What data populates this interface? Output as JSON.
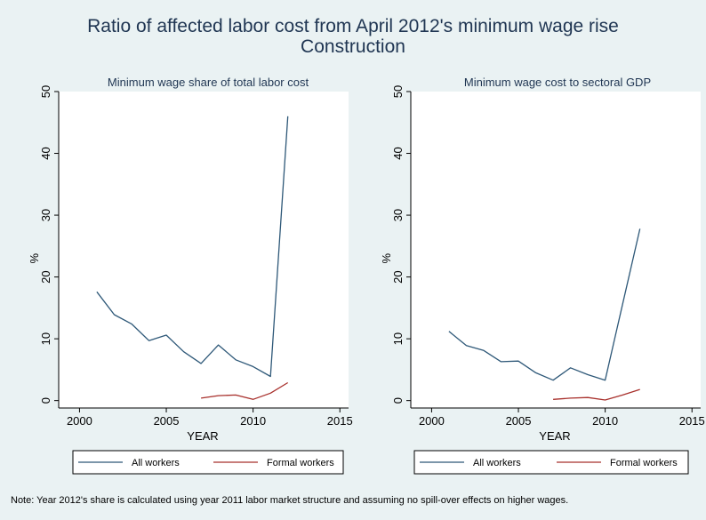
{
  "figure": {
    "title_line1": "Ratio of affected labor cost from April 2012's minimum wage rise",
    "title_line2": "Construction",
    "note": "Note: Year 2012's share is calculated using year 2011 labor market structure and assuming no spill-over effects on higher wages."
  },
  "colors": {
    "background": "#eaf2f3",
    "plot_area": "#ffffff",
    "title": "#1f3552",
    "all_workers": "#2e5878",
    "formal_workers": "#a8302c"
  },
  "chart_data": [
    {
      "type": "line",
      "title": "Minimum wage share of total labor cost",
      "xlabel": "YEAR",
      "ylabel": "%",
      "xlim": [
        1998.8,
        2015.5
      ],
      "ylim": [
        -1.2,
        50
      ],
      "xticks": [
        2000,
        2005,
        2010,
        2015
      ],
      "yticks": [
        0,
        10,
        20,
        30,
        40,
        50
      ],
      "grid": false,
      "legend_position": "bottom",
      "series": [
        {
          "name": "All workers",
          "color": "#2e5878",
          "x": [
            2001,
            2002,
            2003,
            2004,
            2005,
            2006,
            2007,
            2008,
            2009,
            2010,
            2011,
            2012
          ],
          "y": [
            17.6,
            13.9,
            12.4,
            9.7,
            10.6,
            7.9,
            6.0,
            9.0,
            6.6,
            5.5,
            3.9,
            46.0
          ]
        },
        {
          "name": "Formal workers",
          "color": "#a8302c",
          "x": [
            2007,
            2008,
            2009,
            2010,
            2011,
            2012
          ],
          "y": [
            0.4,
            0.8,
            0.9,
            0.2,
            1.2,
            2.9
          ]
        }
      ]
    },
    {
      "type": "line",
      "title": "Minimum wage cost to sectoral GDP",
      "xlabel": "YEAR",
      "ylabel": "%",
      "xlim": [
        1998.8,
        2015.5
      ],
      "ylim": [
        -1.2,
        50
      ],
      "xticks": [
        2000,
        2005,
        2010,
        2015
      ],
      "yticks": [
        0,
        10,
        20,
        30,
        40,
        50
      ],
      "grid": false,
      "legend_position": "bottom",
      "series": [
        {
          "name": "All workers",
          "color": "#2e5878",
          "x": [
            2001,
            2002,
            2003,
            2004,
            2005,
            2006,
            2007,
            2008,
            2009,
            2010,
            2011,
            2012
          ],
          "y": [
            11.2,
            8.9,
            8.1,
            6.3,
            6.4,
            4.5,
            3.3,
            5.3,
            4.2,
            3.3,
            15.6,
            27.8
          ]
        },
        {
          "name": "Formal workers",
          "color": "#a8302c",
          "x": [
            2007,
            2008,
            2009,
            2010,
            2011,
            2012
          ],
          "y": [
            0.2,
            0.4,
            0.5,
            0.1,
            0.9,
            1.8
          ]
        }
      ]
    }
  ]
}
